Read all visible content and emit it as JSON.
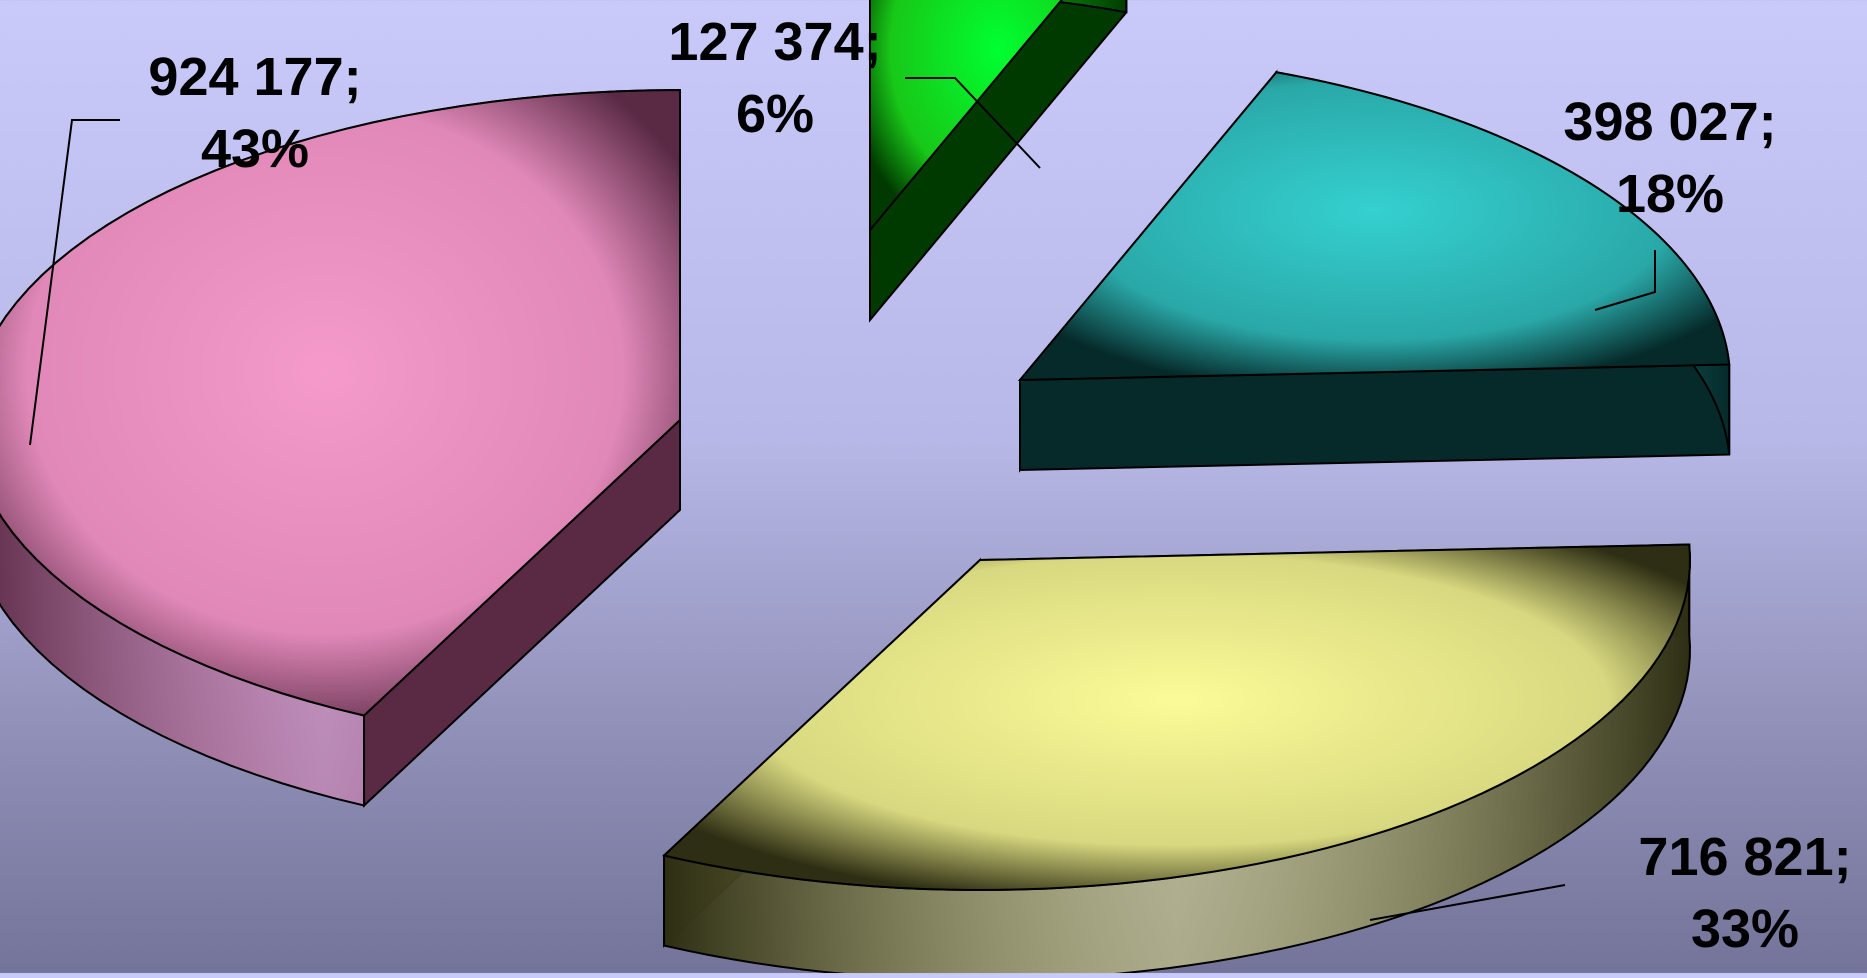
{
  "chart_data": {
    "type": "pie",
    "title": "",
    "style": "3d-exploded",
    "slices": [
      {
        "value": 924177,
        "percent": 43,
        "value_label": "924 177;",
        "percent_label": "43%",
        "color": "#e088b8",
        "dark": "#5a2a45",
        "light": "#f59acb"
      },
      {
        "value": 127374,
        "percent": 6,
        "value_label": "127 374;",
        "percent_label": "6%",
        "color": "#18c818",
        "dark": "#003a00",
        "light": "#00ff30"
      },
      {
        "value": 398027,
        "percent": 18,
        "value_label": "398 027;",
        "percent_label": "18%",
        "color": "#2aa8a8",
        "dark": "#062a2a",
        "light": "#35d0d0"
      },
      {
        "value": 716821,
        "percent": 33,
        "value_label": "716 821;",
        "percent_label": "33%",
        "color": "#d8d880",
        "dark": "#2e2e14",
        "light": "#fbfb98"
      }
    ]
  }
}
